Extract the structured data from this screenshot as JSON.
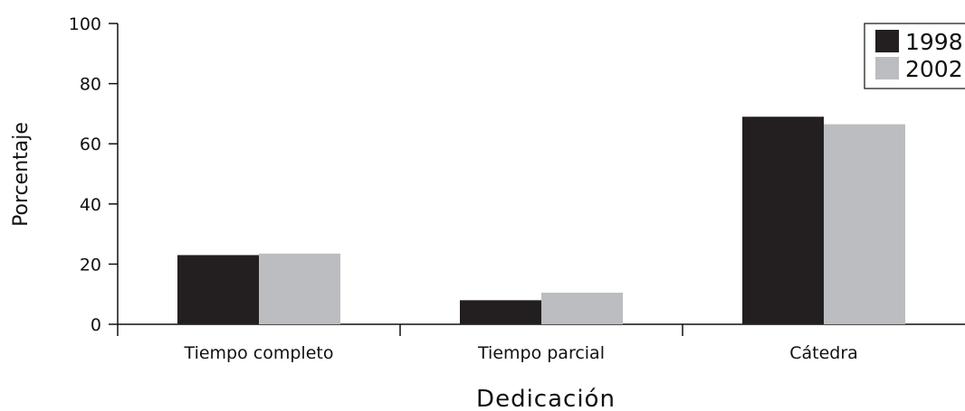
{
  "chart_data": {
    "type": "bar",
    "xlabel": "Dedicación",
    "ylabel": "Porcentaje",
    "categories": [
      "Tiempo completo",
      "Tiempo parcial",
      "Cátedra"
    ],
    "series": [
      {
        "name": "1998",
        "values": [
          23,
          8,
          69
        ],
        "color": "#231f20"
      },
      {
        "name": "2002",
        "values": [
          23.5,
          10.5,
          66.5
        ],
        "color": "#bcbdc0"
      }
    ],
    "ylim": [
      0,
      100
    ],
    "yticks": [
      0,
      20,
      40,
      60,
      80,
      100
    ],
    "grid": false,
    "legend_position": "top-right"
  }
}
